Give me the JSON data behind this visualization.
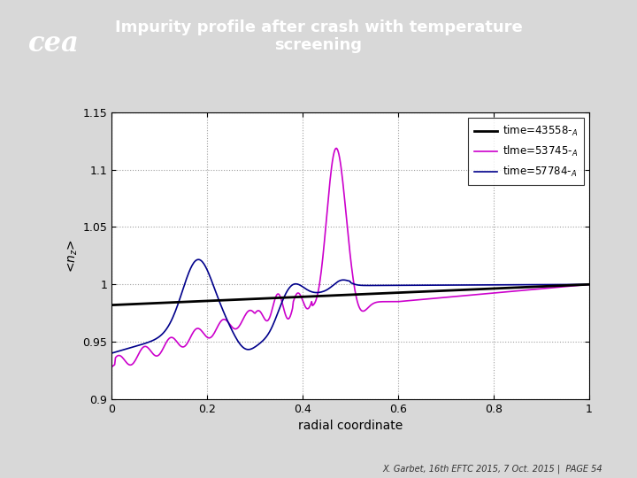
{
  "title": "Impurity profile after crash with temperature\nscreening",
  "title_color": "white",
  "header_bg_color": "#c0001a",
  "xlabel": "radial coordinate",
  "ylabel": "<n_z>",
  "xlim": [
    0,
    1
  ],
  "ylim": [
    0.9,
    1.15
  ],
  "yticks": [
    0.9,
    0.95,
    1.0,
    1.05,
    1.1,
    1.15
  ],
  "xticks": [
    0.0,
    0.2,
    0.4,
    0.6,
    0.8,
    1.0
  ],
  "line1_color": "#000000",
  "line2_color": "#cc00cc",
  "line3_color": "#00008b",
  "footer_text": "X. Garbet, 16th EFTC 2015, 7 Oct. 2015 |  PAGE 54",
  "fig_bg_color": "#d8d8d8",
  "plot_bg": "#ffffff",
  "legend_label1": "time=43558-",
  "legend_label2": "tlme=53745-",
  "legend_label3": "time=57784-"
}
